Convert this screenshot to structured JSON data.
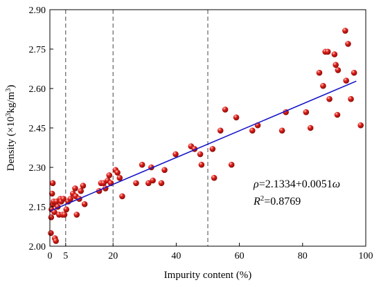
{
  "chart_data": {
    "type": "scatter",
    "xlabel": "Impurity content (%)",
    "ylabel_main": "Density (×10",
    "ylabel_sup": "3",
    "ylabel_unit": "kg/m",
    "ylabel_sup2": "3",
    "ylabel_close": ")",
    "xlim": [
      0,
      100
    ],
    "ylim": [
      2.0,
      2.9
    ],
    "xticks": [
      0,
      5,
      20,
      40,
      60,
      80,
      100
    ],
    "xtick_labels": [
      "0",
      "5",
      "20",
      "40",
      "60",
      "80",
      "100"
    ],
    "yticks": [
      2.0,
      2.15,
      2.3,
      2.45,
      2.6,
      2.75,
      2.9
    ],
    "ytick_labels": [
      "2.00",
      "2.15",
      "2.30",
      "2.45",
      "2.60",
      "2.75",
      "2.90"
    ],
    "reference_lines_x": [
      5,
      20,
      50
    ],
    "fit_line": {
      "intercept": 2.1334,
      "slope": 0.0051,
      "x_range": [
        0,
        97
      ],
      "color": "#1515c8"
    },
    "equation_rho": "ρ",
    "equation_rest": "=2.1334+0.0051",
    "equation_omega": "ω",
    "r2_label": "R",
    "r2_sup": "2",
    "r2_value": "=0.8769",
    "point_color": "#e0201b",
    "points": [
      [
        0.3,
        2.05
      ],
      [
        0.4,
        2.11
      ],
      [
        0.5,
        2.14
      ],
      [
        0.7,
        2.2
      ],
      [
        0.9,
        2.24
      ],
      [
        1.0,
        2.16
      ],
      [
        1.2,
        2.17
      ],
      [
        1.4,
        2.13
      ],
      [
        1.6,
        2.03
      ],
      [
        1.9,
        2.02
      ],
      [
        2.1,
        2.17
      ],
      [
        2.5,
        2.15
      ],
      [
        2.9,
        2.12
      ],
      [
        3.3,
        2.18
      ],
      [
        3.6,
        2.17
      ],
      [
        4.0,
        2.12
      ],
      [
        4.3,
        2.18
      ],
      [
        4.6,
        2.12
      ],
      [
        5.2,
        2.14
      ],
      [
        5.8,
        2.17
      ],
      [
        6.5,
        2.18
      ],
      [
        7.3,
        2.2
      ],
      [
        8.0,
        2.22
      ],
      [
        8.2,
        2.19
      ],
      [
        8.5,
        2.12
      ],
      [
        9.3,
        2.18
      ],
      [
        9.8,
        2.21
      ],
      [
        10.5,
        2.23
      ],
      [
        11.0,
        2.16
      ],
      [
        15.6,
        2.21
      ],
      [
        16.2,
        2.24
      ],
      [
        17.0,
        2.24
      ],
      [
        17.6,
        2.22
      ],
      [
        18.3,
        2.25
      ],
      [
        18.8,
        2.27
      ],
      [
        19.3,
        2.24
      ],
      [
        20.8,
        2.29
      ],
      [
        21.4,
        2.28
      ],
      [
        22.1,
        2.26
      ],
      [
        22.9,
        2.19
      ],
      [
        27.3,
        2.24
      ],
      [
        29.2,
        2.31
      ],
      [
        31.2,
        2.24
      ],
      [
        32.1,
        2.3
      ],
      [
        32.6,
        2.25
      ],
      [
        35.3,
        2.24
      ],
      [
        36.3,
        2.29
      ],
      [
        39.8,
        2.35
      ],
      [
        44.7,
        2.38
      ],
      [
        45.8,
        2.37
      ],
      [
        47.6,
        2.35
      ],
      [
        48.0,
        2.31
      ],
      [
        51.5,
        2.37
      ],
      [
        52.0,
        2.26
      ],
      [
        54.0,
        2.44
      ],
      [
        55.5,
        2.52
      ],
      [
        57.5,
        2.31
      ],
      [
        59.0,
        2.49
      ],
      [
        64.1,
        2.44
      ],
      [
        65.8,
        2.46
      ],
      [
        73.5,
        2.44
      ],
      [
        74.7,
        2.51
      ],
      [
        81.1,
        2.51
      ],
      [
        82.5,
        2.45
      ],
      [
        85.3,
        2.66
      ],
      [
        86.5,
        2.61
      ],
      [
        87.2,
        2.74
      ],
      [
        88.0,
        2.74
      ],
      [
        88.5,
        2.56
      ],
      [
        90.1,
        2.73
      ],
      [
        90.5,
        2.69
      ],
      [
        91.0,
        2.5
      ],
      [
        91.2,
        2.67
      ],
      [
        93.5,
        2.82
      ],
      [
        93.8,
        2.63
      ],
      [
        94.4,
        2.77
      ],
      [
        95.3,
        2.56
      ],
      [
        96.3,
        2.66
      ],
      [
        98.4,
        2.46
      ]
    ]
  }
}
